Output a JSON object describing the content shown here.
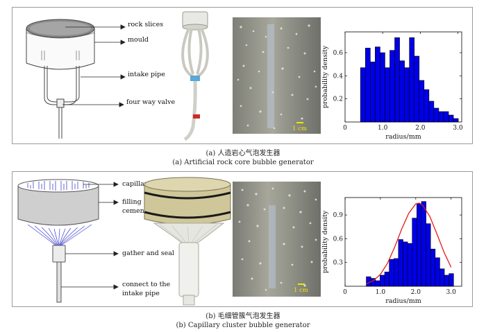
{
  "panel_a": {
    "labels": {
      "rock": "rock slices",
      "mould": "mould",
      "intake": "intake pipe",
      "valve": "four way valve"
    },
    "scale_bar": "1 cm",
    "caption_cn": "(a)  人造岩心气泡发生器",
    "caption_en": "(a)  Artificial rock core bubble generator"
  },
  "panel_b": {
    "labels": {
      "capillary": "capillary",
      "filling_1": "filling",
      "filling_2": "cementation",
      "gather": "gather and seal",
      "connect_1": "connect to the",
      "connect_2": "intake pipe"
    },
    "scale_bar": "1 cm",
    "caption_cn": "(b)  毛细管簇气泡发生器",
    "caption_en": "(b)  Capillary cluster bubble generator"
  },
  "chart_data": [
    {
      "type": "bar",
      "xlabel": "radius/mm",
      "ylabel": "probability density",
      "xlim": [
        0,
        3.1
      ],
      "ylim": [
        0,
        0.78
      ],
      "xticks": [
        "0",
        "1.0",
        "2.0",
        "3.0"
      ],
      "xtick_values": [
        0,
        1,
        2,
        3
      ],
      "yticks": [
        "0.2",
        "0.4",
        "0.6"
      ],
      "ytick_values": [
        0.2,
        0.4,
        0.6
      ],
      "bin_width": 0.13,
      "bin_starts": [
        0.41,
        0.54,
        0.67,
        0.8,
        0.93,
        1.06,
        1.19,
        1.32,
        1.45,
        1.58,
        1.71,
        1.84,
        1.97,
        2.1,
        2.23,
        2.36,
        2.49,
        2.62,
        2.75,
        2.88
      ],
      "values": [
        0.47,
        0.64,
        0.52,
        0.65,
        0.6,
        0.47,
        0.62,
        0.73,
        0.53,
        0.47,
        0.73,
        0.57,
        0.36,
        0.28,
        0.18,
        0.12,
        0.09,
        0.09,
        0.06,
        0.03
      ],
      "bar_color": "#0000e6",
      "edge_color": "#000000"
    },
    {
      "type": "bar",
      "xlabel": "radius/mm",
      "ylabel": "probability density",
      "xlim": [
        0,
        3.3
      ],
      "ylim": [
        0,
        1.12
      ],
      "xticks": [
        "0",
        "1.0",
        "2.0",
        "3.0"
      ],
      "xtick_values": [
        0,
        1,
        2,
        3
      ],
      "yticks": [
        "0.3",
        "0.6",
        "0.9"
      ],
      "ytick_values": [
        0.3,
        0.6,
        0.9
      ],
      "bin_width": 0.13,
      "bin_starts": [
        0.6,
        0.73,
        0.86,
        0.99,
        1.12,
        1.25,
        1.38,
        1.51,
        1.64,
        1.77,
        1.9,
        2.03,
        2.16,
        2.29,
        2.42,
        2.55,
        2.68,
        2.81,
        2.94
      ],
      "values": [
        0.12,
        0.1,
        0.07,
        0.14,
        0.18,
        0.34,
        0.35,
        0.59,
        0.56,
        0.54,
        0.86,
        1.04,
        1.07,
        0.79,
        0.47,
        0.36,
        0.22,
        0.14,
        0.16
      ],
      "curve": {
        "name": "",
        "x": [
          0.6,
          0.8,
          1.0,
          1.2,
          1.4,
          1.6,
          1.8,
          2.0,
          2.1,
          2.2,
          2.4,
          2.6,
          2.8,
          3.0
        ],
        "y": [
          0.03,
          0.07,
          0.15,
          0.29,
          0.49,
          0.72,
          0.92,
          1.04,
          1.05,
          1.02,
          0.88,
          0.66,
          0.43,
          0.24
        ]
      },
      "bar_color": "#0000e6",
      "edge_color": "#000000",
      "curve_color": "#e31a1c"
    }
  ]
}
